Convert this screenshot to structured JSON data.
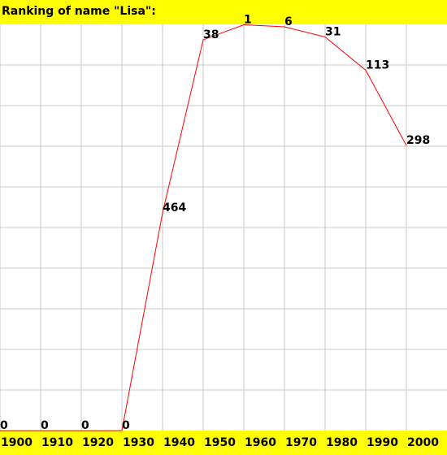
{
  "chart_data": {
    "type": "line",
    "title": "Ranking of name \"Lisa\":",
    "categories": [
      "1900",
      "1910",
      "1920",
      "1930",
      "1940",
      "1950",
      "1960",
      "1970",
      "1980",
      "1990",
      "2000"
    ],
    "series": [
      {
        "name": "Lisa",
        "color": "#ff0000",
        "values": [
          0,
          0,
          0,
          0,
          464,
          38,
          1,
          6,
          31,
          113,
          298
        ]
      }
    ],
    "ylim": [
      1000,
      0
    ],
    "grid": true
  }
}
